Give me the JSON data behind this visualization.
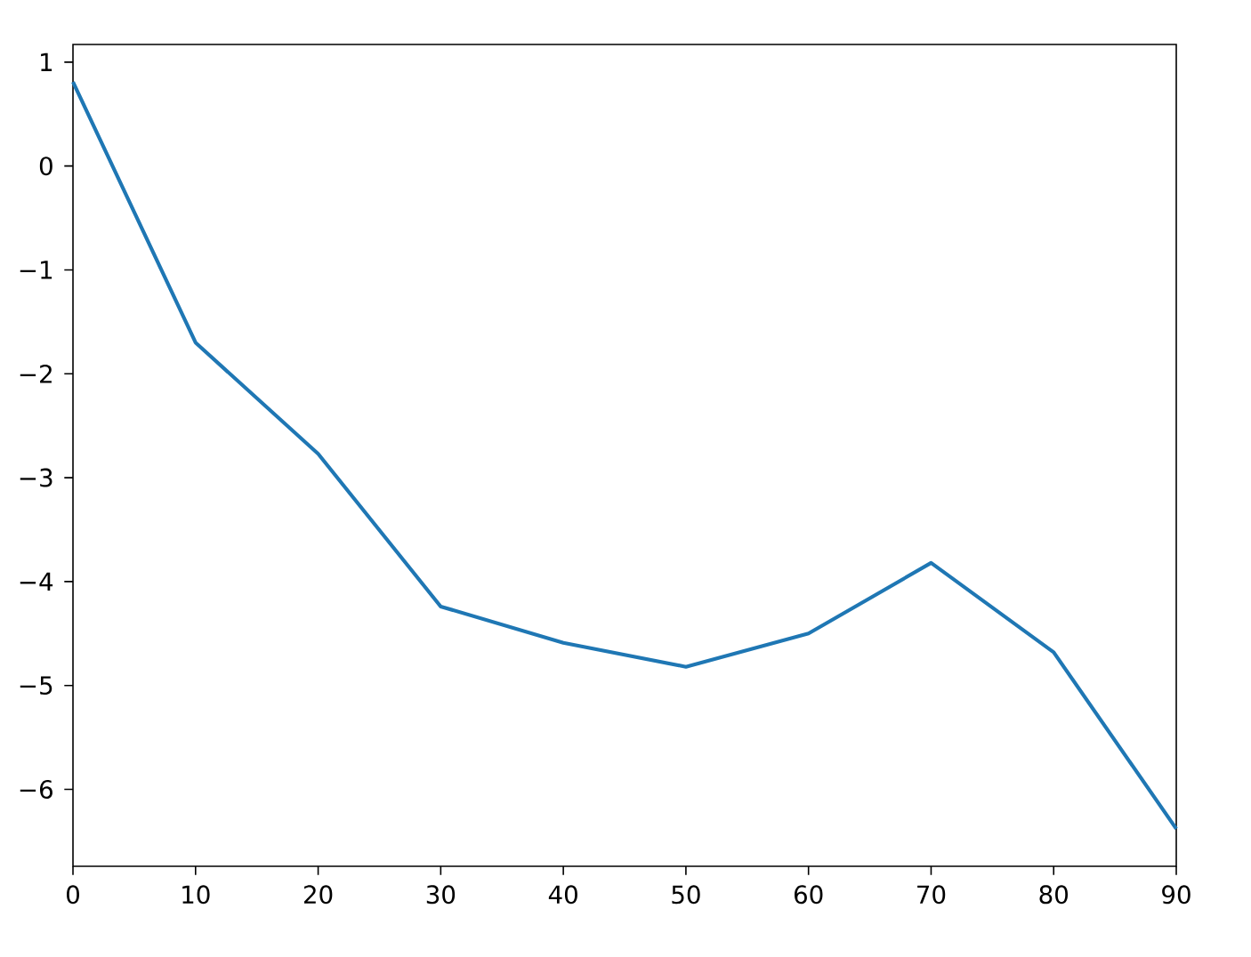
{
  "chart_data": {
    "type": "line",
    "x": [
      0,
      10,
      20,
      30,
      40,
      50,
      60,
      70,
      80,
      90
    ],
    "values": [
      0.81,
      -1.7,
      -2.77,
      -4.24,
      -4.59,
      -4.82,
      -4.5,
      -3.82,
      -4.68,
      -6.38
    ],
    "color": "#1f77b4",
    "xlim": [
      0,
      90
    ],
    "ylim": [
      -6.74,
      1.17
    ],
    "xticks": [
      0,
      10,
      20,
      30,
      40,
      50,
      60,
      70,
      80,
      90
    ],
    "yticks": [
      {
        "value": -6,
        "label": "−6"
      },
      {
        "value": -5,
        "label": "−5"
      },
      {
        "value": -4,
        "label": "−4"
      },
      {
        "value": -3,
        "label": "−3"
      },
      {
        "value": -2,
        "label": "−2"
      },
      {
        "value": -1,
        "label": "−1"
      },
      0,
      1
    ]
  }
}
